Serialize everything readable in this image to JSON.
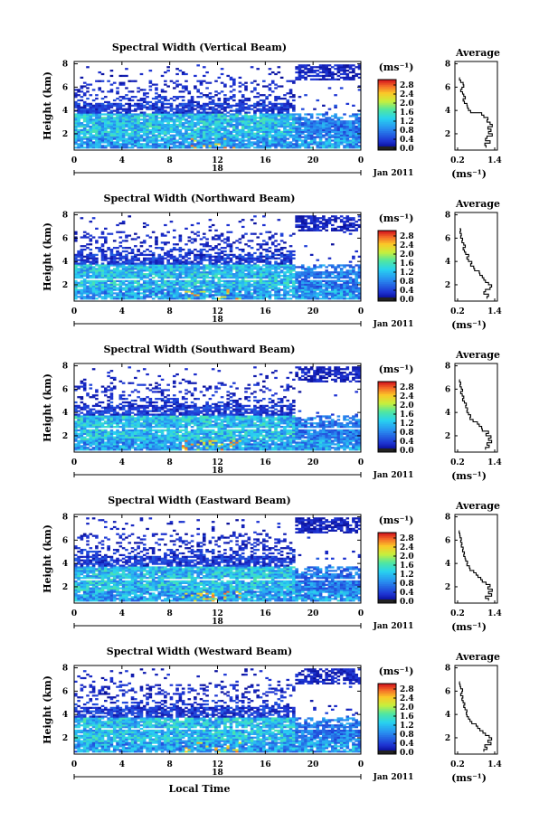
{
  "x_axis_label": "Local Time",
  "avg_title": "Average",
  "unit_label": "(ms⁻¹)",
  "date_label": "Jan 2011",
  "day_label": "18",
  "chart_data": [
    {
      "type": "heatmap",
      "title": "Spectral Width (Vertical Beam)",
      "ylabel": "Height (km)",
      "x_ticks": [
        "0",
        "4",
        "8",
        "12",
        "16",
        "20",
        "0"
      ],
      "y_ticks": [
        "2",
        "4",
        "6",
        "8"
      ],
      "xlim": [
        0,
        24
      ],
      "ylim": [
        0.6,
        8.2
      ],
      "colorbar": {
        "label": "(ms⁻¹)",
        "ticks": [
          "0.0",
          "0.4",
          "0.8",
          "1.2",
          "1.6",
          "2.0",
          "2.4",
          "2.8"
        ],
        "range": [
          0.0,
          2.8
        ]
      },
      "average_profile": {
        "title": "Average",
        "xlabel": "(ms⁻¹)",
        "x_ticks": [
          "0.2",
          "1.4"
        ],
        "y_ticks": [
          "2",
          "4",
          "6",
          "8"
        ],
        "xlim": [
          0.2,
          1.4
        ],
        "ylim": [
          0.6,
          8.2
        ],
        "points": [
          [
            1.12,
            0.8
          ],
          [
            1.08,
            1.0
          ],
          [
            1.25,
            1.2
          ],
          [
            1.1,
            1.4
          ],
          [
            1.15,
            1.6
          ],
          [
            1.32,
            1.8
          ],
          [
            1.2,
            2.0
          ],
          [
            1.28,
            2.2
          ],
          [
            1.18,
            2.4
          ],
          [
            1.32,
            2.6
          ],
          [
            1.25,
            2.8
          ],
          [
            1.15,
            3.0
          ],
          [
            1.18,
            3.2
          ],
          [
            1.05,
            3.4
          ],
          [
            0.98,
            3.6
          ],
          [
            0.62,
            3.8
          ],
          [
            0.55,
            4.0
          ],
          [
            0.52,
            4.2
          ],
          [
            0.5,
            4.4
          ],
          [
            0.42,
            4.6
          ],
          [
            0.38,
            4.8
          ],
          [
            0.45,
            5.0
          ],
          [
            0.4,
            5.2
          ],
          [
            0.36,
            5.4
          ],
          [
            0.3,
            5.6
          ],
          [
            0.34,
            5.8
          ],
          [
            0.4,
            6.0
          ],
          [
            0.38,
            6.2
          ],
          [
            0.3,
            6.4
          ],
          [
            0.26,
            6.6
          ],
          [
            0.25,
            6.8
          ]
        ]
      }
    },
    {
      "type": "heatmap",
      "title": "Spectral Width (Northward Beam)",
      "ylabel": "Height (km)",
      "x_ticks": [
        "0",
        "4",
        "8",
        "12",
        "16",
        "20",
        "0"
      ],
      "y_ticks": [
        "2",
        "4",
        "6",
        "8"
      ],
      "xlim": [
        0,
        24
      ],
      "ylim": [
        0.6,
        8.2
      ],
      "colorbar": {
        "label": "(ms⁻¹)",
        "ticks": [
          "0.0",
          "0.4",
          "0.8",
          "1.2",
          "1.6",
          "2.0",
          "2.4",
          "2.8"
        ],
        "range": [
          0.0,
          2.8
        ]
      },
      "average_profile": {
        "title": "Average",
        "xlabel": "(ms⁻¹)",
        "x_ticks": [
          "0.2",
          "1.4"
        ],
        "y_ticks": [
          "2",
          "4",
          "6",
          "8"
        ],
        "xlim": [
          0.2,
          1.4
        ],
        "ylim": [
          0.6,
          8.2
        ],
        "points": [
          [
            1.15,
            0.8
          ],
          [
            1.2,
            1.0
          ],
          [
            1.05,
            1.2
          ],
          [
            1.1,
            1.4
          ],
          [
            1.25,
            1.6
          ],
          [
            1.3,
            1.8
          ],
          [
            1.2,
            2.0
          ],
          [
            1.1,
            2.2
          ],
          [
            1.05,
            2.4
          ],
          [
            1.0,
            2.6
          ],
          [
            0.92,
            2.8
          ],
          [
            0.9,
            3.0
          ],
          [
            0.75,
            3.2
          ],
          [
            0.72,
            3.4
          ],
          [
            0.62,
            3.6
          ],
          [
            0.66,
            3.8
          ],
          [
            0.55,
            4.0
          ],
          [
            0.5,
            4.2
          ],
          [
            0.56,
            4.4
          ],
          [
            0.46,
            4.6
          ],
          [
            0.42,
            4.8
          ],
          [
            0.38,
            5.0
          ],
          [
            0.45,
            5.2
          ],
          [
            0.4,
            5.4
          ],
          [
            0.34,
            5.6
          ],
          [
            0.36,
            5.8
          ],
          [
            0.3,
            6.0
          ],
          [
            0.32,
            6.2
          ],
          [
            0.28,
            6.4
          ],
          [
            0.3,
            6.6
          ],
          [
            0.26,
            6.8
          ]
        ]
      }
    },
    {
      "type": "heatmap",
      "title": "Spectral Width (Southward Beam)",
      "ylabel": "Height (km)",
      "x_ticks": [
        "0",
        "4",
        "8",
        "12",
        "16",
        "20",
        "0"
      ],
      "y_ticks": [
        "2",
        "4",
        "6",
        "8"
      ],
      "xlim": [
        0,
        24
      ],
      "ylim": [
        0.6,
        8.2
      ],
      "colorbar": {
        "label": "(ms⁻¹)",
        "ticks": [
          "0.0",
          "0.4",
          "0.8",
          "1.2",
          "1.6",
          "2.0",
          "2.4",
          "2.8"
        ],
        "range": [
          0.0,
          2.8
        ]
      },
      "average_profile": {
        "title": "Average",
        "xlabel": "(ms⁻¹)",
        "x_ticks": [
          "0.2",
          "1.4"
        ],
        "y_ticks": [
          "2",
          "4",
          "6",
          "8"
        ],
        "xlim": [
          0.2,
          1.4
        ],
        "ylim": [
          0.6,
          8.2
        ],
        "points": [
          [
            1.1,
            0.8
          ],
          [
            1.22,
            1.0
          ],
          [
            1.15,
            1.2
          ],
          [
            1.3,
            1.4
          ],
          [
            1.2,
            1.6
          ],
          [
            1.28,
            1.8
          ],
          [
            1.12,
            2.0
          ],
          [
            1.2,
            2.2
          ],
          [
            1.0,
            2.4
          ],
          [
            0.98,
            2.6
          ],
          [
            0.9,
            2.8
          ],
          [
            0.84,
            3.0
          ],
          [
            0.7,
            3.2
          ],
          [
            0.6,
            3.4
          ],
          [
            0.62,
            3.6
          ],
          [
            0.55,
            3.8
          ],
          [
            0.5,
            4.0
          ],
          [
            0.52,
            4.2
          ],
          [
            0.46,
            4.4
          ],
          [
            0.48,
            4.6
          ],
          [
            0.42,
            4.8
          ],
          [
            0.36,
            5.0
          ],
          [
            0.4,
            5.2
          ],
          [
            0.35,
            5.4
          ],
          [
            0.3,
            5.6
          ],
          [
            0.36,
            5.8
          ],
          [
            0.32,
            6.0
          ],
          [
            0.28,
            6.2
          ],
          [
            0.3,
            6.4
          ],
          [
            0.26,
            6.6
          ],
          [
            0.25,
            6.8
          ]
        ]
      }
    },
    {
      "type": "heatmap",
      "title": "Spectral Width (Eastward Beam)",
      "ylabel": "Height (km)",
      "x_ticks": [
        "0",
        "4",
        "8",
        "12",
        "16",
        "20",
        "0"
      ],
      "y_ticks": [
        "2",
        "4",
        "6",
        "8"
      ],
      "xlim": [
        0,
        24
      ],
      "ylim": [
        0.6,
        8.2
      ],
      "colorbar": {
        "label": "(ms⁻¹)",
        "ticks": [
          "0.0",
          "0.4",
          "0.8",
          "1.2",
          "1.6",
          "2.0",
          "2.4",
          "2.8"
        ],
        "range": [
          0.0,
          2.8
        ]
      },
      "average_profile": {
        "title": "Average",
        "xlabel": "(ms⁻¹)",
        "x_ticks": [
          "0.2",
          "1.4"
        ],
        "y_ticks": [
          "2",
          "4",
          "6",
          "8"
        ],
        "xlim": [
          0.2,
          1.4
        ],
        "ylim": [
          0.6,
          8.2
        ],
        "points": [
          [
            1.2,
            0.8
          ],
          [
            1.1,
            1.0
          ],
          [
            1.3,
            1.2
          ],
          [
            1.2,
            1.4
          ],
          [
            1.32,
            1.6
          ],
          [
            1.18,
            1.8
          ],
          [
            1.25,
            2.0
          ],
          [
            1.12,
            2.2
          ],
          [
            1.0,
            2.4
          ],
          [
            0.95,
            2.6
          ],
          [
            0.86,
            2.8
          ],
          [
            0.8,
            3.0
          ],
          [
            0.72,
            3.2
          ],
          [
            0.6,
            3.4
          ],
          [
            0.58,
            3.6
          ],
          [
            0.5,
            3.8
          ],
          [
            0.52,
            4.0
          ],
          [
            0.46,
            4.2
          ],
          [
            0.44,
            4.4
          ],
          [
            0.4,
            4.6
          ],
          [
            0.42,
            4.8
          ],
          [
            0.36,
            5.0
          ],
          [
            0.38,
            5.2
          ],
          [
            0.32,
            5.4
          ],
          [
            0.34,
            5.6
          ],
          [
            0.3,
            5.8
          ],
          [
            0.32,
            6.0
          ],
          [
            0.28,
            6.2
          ],
          [
            0.27,
            6.4
          ],
          [
            0.25,
            6.6
          ],
          [
            0.24,
            6.8
          ]
        ]
      }
    },
    {
      "type": "heatmap",
      "title": "Spectral Width (Westward Beam)",
      "ylabel": "Height (km)",
      "x_ticks": [
        "0",
        "4",
        "8",
        "12",
        "16",
        "20",
        "0"
      ],
      "y_ticks": [
        "2",
        "4",
        "6",
        "8"
      ],
      "xlim": [
        0,
        24
      ],
      "ylim": [
        0.6,
        8.2
      ],
      "colorbar": {
        "label": "(ms⁻¹)",
        "ticks": [
          "0.0",
          "0.4",
          "0.8",
          "1.2",
          "1.6",
          "2.0",
          "2.4",
          "2.8"
        ],
        "range": [
          0.0,
          2.8
        ]
      },
      "average_profile": {
        "title": "Average",
        "xlabel": "(ms⁻¹)",
        "x_ticks": [
          "0.2",
          "1.4"
        ],
        "y_ticks": [
          "2",
          "4",
          "6",
          "8"
        ],
        "xlim": [
          0.2,
          1.4
        ],
        "ylim": [
          0.6,
          8.2
        ],
        "points": [
          [
            1.05,
            0.8
          ],
          [
            1.15,
            1.0
          ],
          [
            1.08,
            1.2
          ],
          [
            1.28,
            1.4
          ],
          [
            1.18,
            1.6
          ],
          [
            1.3,
            1.8
          ],
          [
            1.22,
            2.0
          ],
          [
            1.1,
            2.2
          ],
          [
            1.02,
            2.4
          ],
          [
            0.92,
            2.6
          ],
          [
            0.85,
            2.8
          ],
          [
            0.8,
            3.0
          ],
          [
            0.66,
            3.2
          ],
          [
            0.6,
            3.4
          ],
          [
            0.55,
            3.6
          ],
          [
            0.5,
            3.8
          ],
          [
            0.48,
            4.0
          ],
          [
            0.5,
            4.2
          ],
          [
            0.44,
            4.4
          ],
          [
            0.4,
            4.6
          ],
          [
            0.43,
            4.8
          ],
          [
            0.38,
            5.0
          ],
          [
            0.34,
            5.2
          ],
          [
            0.37,
            5.4
          ],
          [
            0.3,
            5.6
          ],
          [
            0.34,
            5.8
          ],
          [
            0.36,
            6.0
          ],
          [
            0.3,
            6.2
          ],
          [
            0.28,
            6.4
          ],
          [
            0.26,
            6.6
          ],
          [
            0.25,
            6.8
          ]
        ]
      }
    }
  ]
}
